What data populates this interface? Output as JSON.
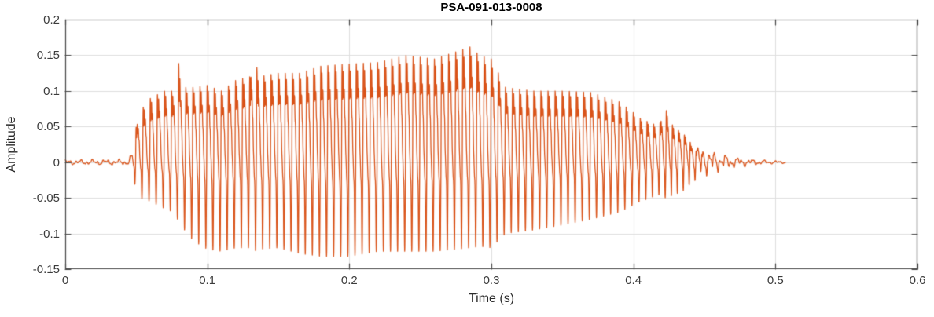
{
  "figure": {
    "title": "PSA-091-013-0008",
    "xlabel": "Time (s)",
    "ylabel": "Amplitude"
  },
  "chart_data": {
    "type": "line",
    "title": "PSA-091-013-0008",
    "xlabel": "Time (s)",
    "ylabel": "Amplitude",
    "xlim": [
      0,
      0.6
    ],
    "ylim": [
      -0.15,
      0.2
    ],
    "x_ticks": [
      0,
      0.1,
      0.2,
      0.3,
      0.4,
      0.5,
      0.6
    ],
    "x_tick_labels": [
      "0",
      "0.1",
      "0.2",
      "0.3",
      "0.4",
      "0.5",
      "0.6"
    ],
    "y_ticks": [
      -0.15,
      -0.1,
      -0.05,
      0,
      0.05,
      0.1,
      0.15,
      0.2
    ],
    "y_tick_labels": [
      "-0.15",
      "-0.1",
      "-0.05",
      "0",
      "0.05",
      "0.1",
      "0.15",
      "0.2"
    ],
    "grid": true,
    "legend": null,
    "line_color": "#D95319",
    "axis_color": "#454545",
    "grid_color": "#DEDEDE",
    "background": "#FFFFFF",
    "series": [
      {
        "name": "waveform",
        "signal": {
          "t_start": 0.0,
          "t_onset": 0.048,
          "t_end": 0.507,
          "fundamental_hz": [
            [
              0.0,
              200
            ],
            [
              0.4,
              200
            ],
            [
              0.43,
              238
            ],
            [
              0.47,
              255
            ]
          ],
          "noise_floor": 0.004,
          "envelope_t": [
            0.0,
            0.045,
            0.048,
            0.052,
            0.06,
            0.07,
            0.076,
            0.079,
            0.082,
            0.09,
            0.1,
            0.11,
            0.12,
            0.13,
            0.133,
            0.136,
            0.15,
            0.165,
            0.18,
            0.2,
            0.22,
            0.24,
            0.26,
            0.275,
            0.285,
            0.292,
            0.3,
            0.31,
            0.33,
            0.35,
            0.37,
            0.39,
            0.405,
            0.418,
            0.422,
            0.426,
            0.435,
            0.445,
            0.455,
            0.465,
            0.48,
            0.495,
            0.507
          ],
          "envelope_upper": [
            0.004,
            0.005,
            0.03,
            0.07,
            0.09,
            0.1,
            0.1,
            0.153,
            0.105,
            0.105,
            0.108,
            0.1,
            0.115,
            0.12,
            0.155,
            0.12,
            0.125,
            0.125,
            0.135,
            0.138,
            0.14,
            0.15,
            0.145,
            0.155,
            0.162,
            0.15,
            0.145,
            0.105,
            0.1,
            0.1,
            0.098,
            0.085,
            0.062,
            0.05,
            0.081,
            0.055,
            0.04,
            0.028,
            0.018,
            0.012,
            0.006,
            0.003,
            0.002
          ],
          "envelope_lower": [
            -0.004,
            -0.005,
            -0.025,
            -0.05,
            -0.055,
            -0.065,
            -0.07,
            -0.08,
            -0.09,
            -0.11,
            -0.122,
            -0.125,
            -0.12,
            -0.12,
            -0.125,
            -0.122,
            -0.12,
            -0.128,
            -0.132,
            -0.132,
            -0.125,
            -0.125,
            -0.125,
            -0.122,
            -0.12,
            -0.118,
            -0.12,
            -0.1,
            -0.095,
            -0.088,
            -0.08,
            -0.07,
            -0.055,
            -0.046,
            -0.05,
            -0.048,
            -0.04,
            -0.03,
            -0.018,
            -0.012,
            -0.006,
            -0.003,
            -0.002
          ],
          "notable_peaks": [
            {
              "t": 0.079,
              "v": 0.153
            },
            {
              "t": 0.133,
              "v": 0.155
            },
            {
              "t": 0.285,
              "v": 0.162
            },
            {
              "t": 0.295,
              "v": 0.152
            },
            {
              "t": 0.422,
              "v": 0.081
            }
          ]
        }
      }
    ]
  }
}
